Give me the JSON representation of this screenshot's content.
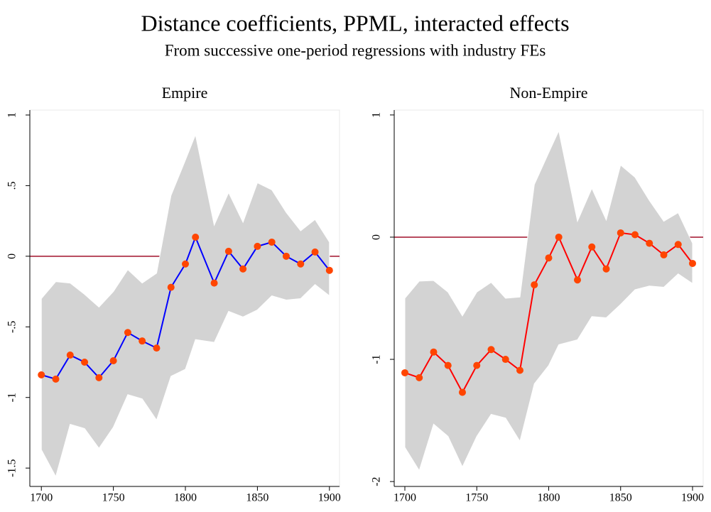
{
  "header": {
    "title": "Distance coefficients, PPML, interacted effects",
    "subtitle": "From successive one-period regressions with industry FEs"
  },
  "chart_data": [
    {
      "type": "line",
      "title": "Empire",
      "x": [
        1700,
        1710,
        1720,
        1730,
        1740,
        1750,
        1760,
        1770,
        1780,
        1790,
        1800,
        1807,
        1820,
        1830,
        1840,
        1850,
        1860,
        1870,
        1880,
        1890,
        1900
      ],
      "series": [
        {
          "color": "#0000ff",
          "marker_color": "#ff4500",
          "values": [
            -0.84,
            -0.87,
            -0.7,
            -0.75,
            -0.86,
            -0.74,
            -0.54,
            -0.6,
            -0.65,
            -0.22,
            -0.055,
            0.135,
            -0.19,
            0.035,
            -0.09,
            0.07,
            0.1,
            0.0,
            -0.055,
            0.03,
            -0.1
          ]
        }
      ],
      "band": {
        "color": "#d3d3d3",
        "upper": [
          -0.3,
          -0.18,
          -0.19,
          -0.27,
          -0.36,
          -0.25,
          -0.095,
          -0.19,
          -0.12,
          0.43,
          0.68,
          0.86,
          0.22,
          0.45,
          0.24,
          0.52,
          0.47,
          0.31,
          0.18,
          0.26,
          0.1
        ],
        "lower": [
          -1.37,
          -1.56,
          -1.19,
          -1.22,
          -1.36,
          -1.21,
          -0.98,
          -1.01,
          -1.16,
          -0.85,
          -0.8,
          -0.59,
          -0.61,
          -0.39,
          -0.43,
          -0.38,
          -0.28,
          -0.31,
          -0.3,
          -0.2,
          -0.28
        ]
      },
      "hline": 0,
      "hline_color": "#a0102a",
      "xlim": [
        1692,
        1907
      ],
      "xticks": [
        1700,
        1750,
        1800,
        1850,
        1900
      ],
      "ylim": [
        -1.63,
        1.035
      ],
      "yticks": [
        1,
        {
          "value": 0.5,
          "label": ".5"
        },
        0,
        {
          "value": -0.5,
          "label": "-.5"
        },
        -1,
        -1.5
      ]
    },
    {
      "type": "line",
      "title": "Non-Empire",
      "x": [
        1700,
        1710,
        1720,
        1730,
        1740,
        1750,
        1760,
        1770,
        1780,
        1790,
        1800,
        1807,
        1820,
        1830,
        1840,
        1850,
        1860,
        1870,
        1880,
        1890,
        1900
      ],
      "series": [
        {
          "color": "#ff0000",
          "marker_color": "#ff4500",
          "values": [
            -1.11,
            -1.15,
            -0.94,
            -1.05,
            -1.27,
            -1.05,
            -0.92,
            -1.0,
            -1.09,
            -0.39,
            -0.17,
            0.0,
            -0.35,
            -0.08,
            -0.26,
            0.035,
            0.02,
            -0.05,
            -0.145,
            -0.06,
            -0.215
          ]
        }
      ],
      "band": {
        "color": "#d3d3d3",
        "upper": [
          -0.5,
          -0.36,
          -0.355,
          -0.45,
          -0.645,
          -0.45,
          -0.37,
          -0.5,
          -0.49,
          0.43,
          0.69,
          0.87,
          0.13,
          0.4,
          0.14,
          0.59,
          0.49,
          0.3,
          0.13,
          0.2,
          -0.05
        ],
        "lower": [
          -1.72,
          -1.91,
          -1.53,
          -1.63,
          -1.88,
          -1.63,
          -1.45,
          -1.48,
          -1.67,
          -1.2,
          -1.05,
          -0.88,
          -0.84,
          -0.65,
          -0.66,
          -0.55,
          -0.43,
          -0.4,
          -0.41,
          -0.3,
          -0.38
        ]
      },
      "hline": 0,
      "hline_color": "#a0102a",
      "xlim": [
        1692.6,
        1907.4
      ],
      "xticks": [
        1700,
        1750,
        1800,
        1850,
        1900
      ],
      "ylim": [
        -2.04,
        1.04
      ],
      "yticks": [
        1,
        0,
        -1,
        -2
      ]
    }
  ]
}
